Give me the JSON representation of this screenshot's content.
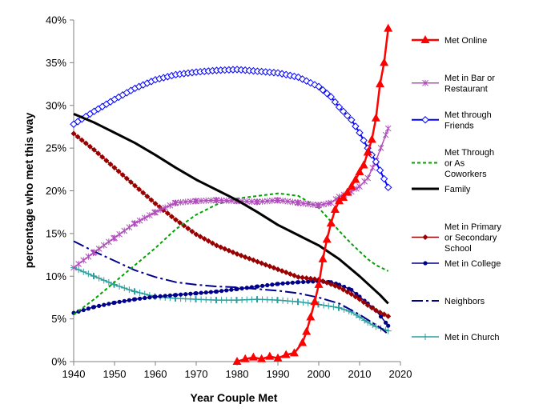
{
  "chart_data": {
    "type": "line",
    "title": "",
    "xlabel": "Year Couple Met",
    "ylabel": "percentage who met this way",
    "xlim": [
      1940,
      2020
    ],
    "ylim": [
      0,
      40
    ],
    "x_ticks": [
      "1940",
      "1950",
      "1960",
      "1970",
      "1980",
      "1990",
      "2000",
      "2010",
      "2020"
    ],
    "y_ticks": [
      "0%",
      "5%",
      "10%",
      "15%",
      "20%",
      "25%",
      "30%",
      "35%",
      "40%"
    ],
    "grid": false,
    "legend_position": "right",
    "series": [
      {
        "name": "Met Online",
        "color": "#ff0000",
        "dash": "",
        "marker": "triangle",
        "width": 2.5,
        "x": [
          1980,
          1982,
          1984,
          1986,
          1988,
          1990,
          1992,
          1994,
          1996,
          1997,
          1998,
          1999,
          2000,
          2001,
          2002,
          2003,
          2004,
          2005,
          2006,
          2007,
          2008,
          2009,
          2010,
          2011,
          2012,
          2013,
          2014,
          2015,
          2016,
          2017
        ],
        "y": [
          0,
          0.3,
          0.5,
          0.3,
          0.6,
          0.4,
          0.8,
          1.0,
          2.2,
          3.5,
          5.2,
          7.0,
          9.0,
          12.0,
          14.3,
          16.2,
          17.8,
          18.8,
          19.2,
          19.8,
          20.5,
          21.3,
          22.2,
          23.0,
          24.5,
          26.0,
          28.5,
          32.5,
          35.0,
          39.0
        ]
      },
      {
        "name": "Met in Bar or Restaurant",
        "color": "#b04dbb",
        "dash": "",
        "marker": "star",
        "width": 1.5,
        "x": [
          1940,
          1945,
          1950,
          1955,
          1960,
          1965,
          1970,
          1975,
          1980,
          1985,
          1990,
          1995,
          2000,
          2003,
          2005,
          2008,
          2010,
          2012,
          2014,
          2017
        ],
        "y": [
          11.0,
          12.8,
          14.5,
          16.2,
          17.5,
          18.6,
          18.8,
          18.9,
          18.8,
          18.7,
          18.9,
          18.6,
          18.3,
          18.6,
          19.3,
          19.9,
          20.5,
          21.5,
          23.5,
          27.3
        ]
      },
      {
        "name": "Met through Friends",
        "color": "#0000ff",
        "dash": "",
        "marker": "diamond-open",
        "width": 2,
        "x": [
          1940,
          1945,
          1950,
          1955,
          1960,
          1965,
          1970,
          1975,
          1980,
          1985,
          1990,
          1995,
          2000,
          2003,
          2005,
          2008,
          2010,
          2012,
          2014,
          2017
        ],
        "y": [
          27.8,
          29.3,
          30.7,
          32.0,
          33.0,
          33.6,
          33.9,
          34.1,
          34.2,
          34.0,
          33.8,
          33.3,
          32.2,
          31.0,
          29.8,
          28.3,
          26.8,
          25.0,
          23.4,
          20.4
        ]
      },
      {
        "name": "Met Through or As Coworkers",
        "color": "#00a000",
        "dash": "4,3",
        "marker": "",
        "width": 2,
        "x": [
          1940,
          1945,
          1950,
          1955,
          1960,
          1965,
          1970,
          1975,
          1980,
          1985,
          1990,
          1995,
          2000,
          2003,
          2005,
          2008,
          2010,
          2012,
          2014,
          2017
        ],
        "y": [
          5.5,
          7.3,
          9.3,
          11.3,
          13.3,
          15.5,
          17.2,
          18.4,
          19.1,
          19.4,
          19.7,
          19.4,
          18.0,
          16.4,
          15.3,
          13.8,
          12.9,
          12.0,
          11.3,
          10.6
        ]
      },
      {
        "name": "Family",
        "color": "#000000",
        "dash": "",
        "marker": "",
        "width": 3,
        "x": [
          1940,
          1945,
          1950,
          1955,
          1960,
          1965,
          1970,
          1975,
          1980,
          1985,
          1990,
          1995,
          2000,
          2005,
          2010,
          2015,
          2017
        ],
        "y": [
          29.0,
          28.0,
          26.8,
          25.6,
          24.2,
          22.7,
          21.3,
          20.1,
          18.9,
          17.5,
          16.0,
          14.8,
          13.6,
          12.0,
          10.0,
          7.8,
          6.8
        ]
      },
      {
        "name": "Met in Primary or Secondary School",
        "color": "#990000",
        "dash": "",
        "marker": "diamond",
        "width": 1.5,
        "x": [
          1940,
          1945,
          1950,
          1955,
          1960,
          1965,
          1970,
          1975,
          1980,
          1985,
          1990,
          1995,
          2000,
          2005,
          2008,
          2010,
          2012,
          2014,
          2017
        ],
        "y": [
          26.7,
          24.8,
          22.7,
          20.6,
          18.5,
          16.6,
          14.9,
          13.6,
          12.6,
          11.7,
          10.8,
          9.9,
          9.6,
          8.7,
          7.9,
          7.3,
          6.6,
          6.0,
          5.3
        ]
      },
      {
        "name": "Met in College",
        "color": "#00008b",
        "dash": "",
        "marker": "dot",
        "width": 1.5,
        "x": [
          1940,
          1945,
          1950,
          1955,
          1960,
          1965,
          1970,
          1975,
          1980,
          1985,
          1990,
          1995,
          2000,
          2003,
          2005,
          2008,
          2010,
          2012,
          2014,
          2017
        ],
        "y": [
          5.7,
          6.4,
          6.9,
          7.3,
          7.6,
          7.8,
          8.0,
          8.2,
          8.5,
          8.8,
          9.1,
          9.3,
          9.4,
          9.3,
          9.0,
          8.4,
          7.6,
          6.8,
          6.0,
          4.2
        ]
      },
      {
        "name": "Neighbors",
        "color": "#00008b",
        "dash": "14,4,3,4",
        "marker": "",
        "width": 2,
        "x": [
          1940,
          1945,
          1950,
          1955,
          1960,
          1965,
          1970,
          1975,
          1980,
          1985,
          1990,
          1995,
          2000,
          2005,
          2010,
          2015,
          2017
        ],
        "y": [
          14.1,
          12.9,
          11.8,
          10.7,
          9.9,
          9.3,
          9.0,
          8.8,
          8.7,
          8.5,
          8.3,
          8.0,
          7.5,
          6.8,
          5.5,
          4.0,
          3.2
        ]
      },
      {
        "name": "Met in Church",
        "color": "#2a9d9d",
        "dash": "",
        "marker": "plus",
        "width": 1.5,
        "x": [
          1940,
          1945,
          1950,
          1955,
          1960,
          1965,
          1970,
          1975,
          1980,
          1985,
          1990,
          1995,
          2000,
          2005,
          2008,
          2010,
          2012,
          2014,
          2017
        ],
        "y": [
          11.0,
          10.0,
          9.0,
          8.2,
          7.6,
          7.4,
          7.3,
          7.2,
          7.2,
          7.3,
          7.2,
          7.0,
          6.7,
          6.3,
          5.8,
          5.2,
          4.6,
          4.1,
          3.6
        ]
      }
    ],
    "legend": [
      {
        "lines": [
          "Met Online"
        ]
      },
      {
        "lines": [
          "Met in Bar or",
          "Restaurant"
        ]
      },
      {
        "lines": [
          "Met through",
          "Friends"
        ]
      },
      {
        "lines": [
          "Met Through",
          "or As",
          "Coworkers"
        ]
      },
      {
        "lines": [
          "Family"
        ]
      },
      {
        "lines": [
          "Met in Primary",
          "or Secondary",
          "School"
        ]
      },
      {
        "lines": [
          "Met in College"
        ]
      },
      {
        "lines": [
          "Neighbors"
        ]
      },
      {
        "lines": [
          "Met in Church"
        ]
      }
    ]
  }
}
